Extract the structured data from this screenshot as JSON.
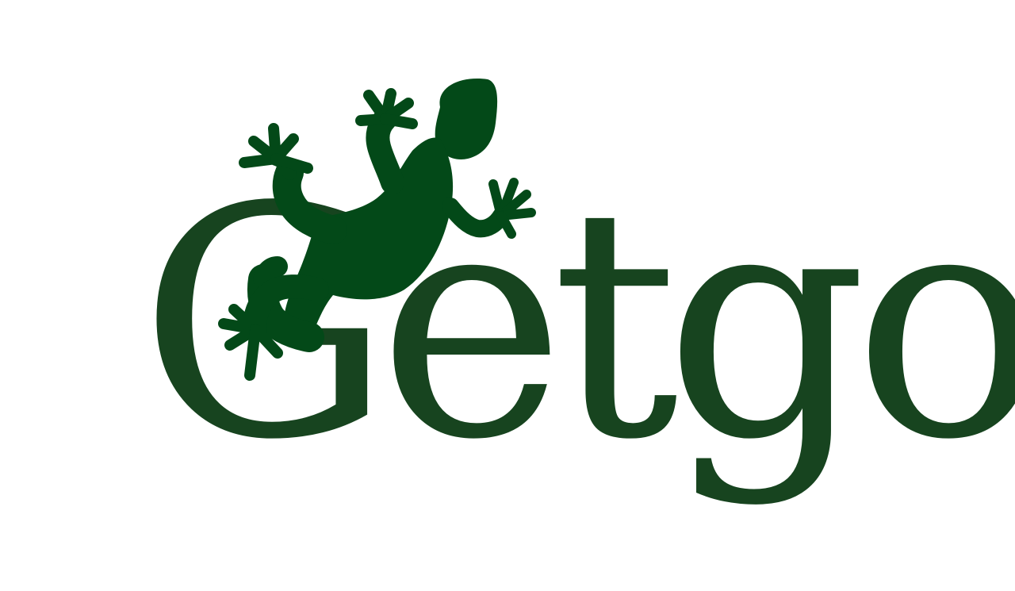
{
  "logo": {
    "wordmark": "Getgo",
    "icon": "gecko-icon",
    "colors": {
      "wordmark": "#17441f",
      "gecko": "#034918",
      "background": "#ffffff"
    }
  }
}
